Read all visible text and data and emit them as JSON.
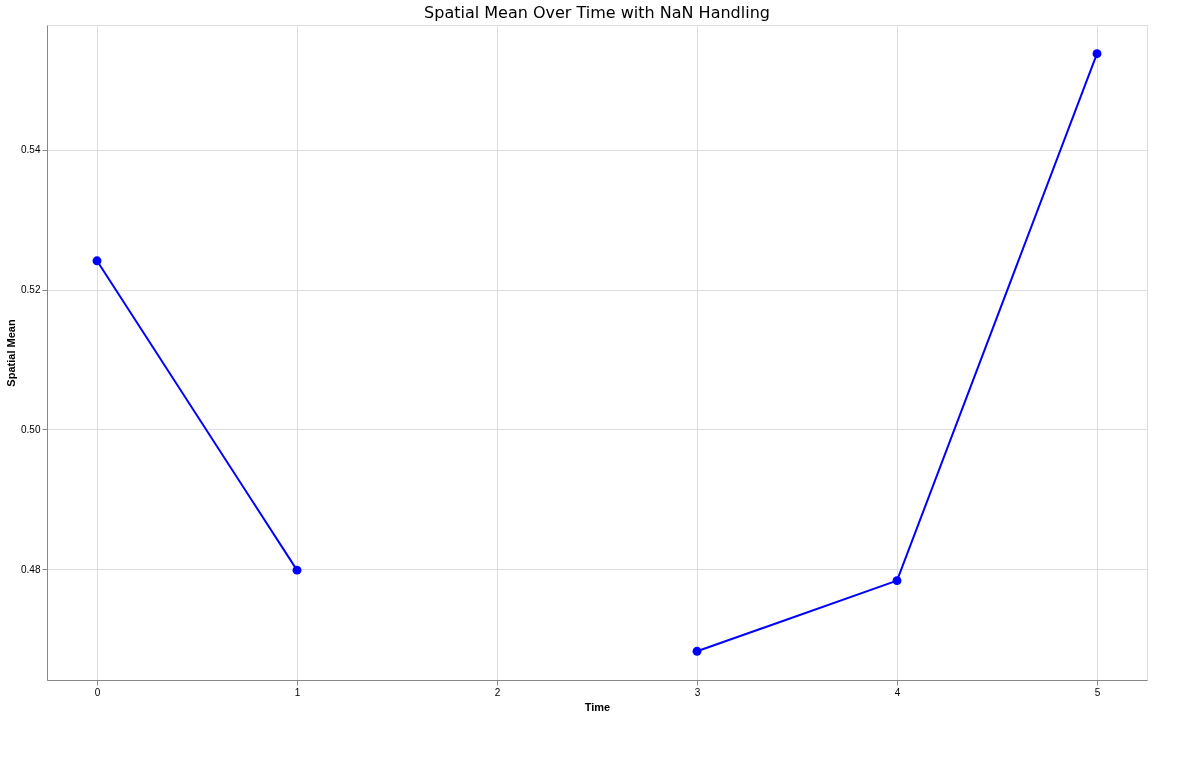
{
  "chart_data": {
    "type": "line",
    "title": "Spatial Mean Over Time with NaN Handling",
    "xlabel": "Time",
    "ylabel": "Spatial Mean",
    "x": [
      0,
      1,
      2,
      3,
      4,
      5
    ],
    "series": [
      {
        "color": "#0000ff",
        "values": [
          0.5241,
          0.4799,
          null,
          0.4683,
          0.4784,
          0.5537
        ]
      }
    ],
    "xlim": [
      -0.25,
      5.25
    ],
    "xticks": [
      0,
      1,
      2,
      3,
      4,
      5
    ],
    "ylim": [
      0.4642,
      0.5578
    ],
    "yticks": [
      {
        "value": 0.48,
        "label": "0.48"
      },
      {
        "value": 0.5,
        "label": "0.50"
      },
      {
        "value": 0.52,
        "label": "0.52"
      },
      {
        "value": 0.54,
        "label": "0.54"
      }
    ],
    "grid": true,
    "marker": "circle",
    "line_style": "solid"
  }
}
